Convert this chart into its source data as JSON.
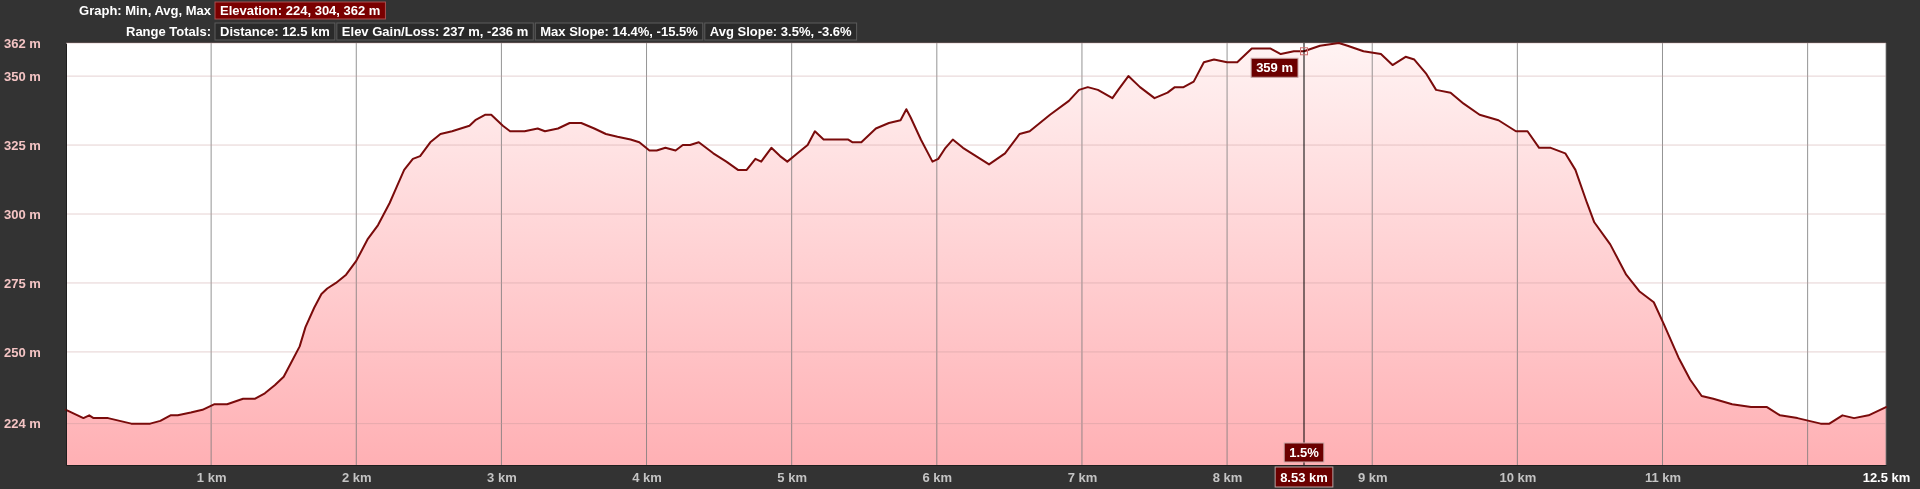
{
  "chart_data": {
    "type": "area",
    "annotations": [
      "Graph: Min, Avg, Max",
      "Elevation: 224, 304, 362 m",
      "Range Totals:",
      "Distance: 12.5 km",
      "Elev Gain/Loss: 237 m, -236 m",
      "Max Slope: 14.4%, -15.5%",
      "Avg Slope: 3.5%, -3.6%",
      {
        "text": "359 m",
        "x": 8.53,
        "y": 359
      },
      {
        "text": "1.5%",
        "x": 8.53
      }
    ],
    "x": [
      0,
      0.08,
      0.12,
      0.16,
      0.19,
      0.29,
      0.37,
      0.45,
      0.51,
      0.58,
      0.65,
      0.72,
      0.77,
      0.86,
      0.94,
      1.02,
      1.11,
      1.22,
      1.3,
      1.37,
      1.44,
      1.5,
      1.55,
      1.61,
      1.65,
      1.71,
      1.76,
      1.8,
      1.86,
      1.93,
      2.0,
      2.08,
      2.15,
      2.19,
      2.23,
      2.28,
      2.33,
      2.39,
      2.44,
      2.51,
      2.58,
      2.66,
      2.72,
      2.78,
      2.82,
      2.89,
      2.93,
      2.97,
      3.01,
      3.06,
      3.11,
      3.16,
      3.25,
      3.3,
      3.39,
      3.47,
      3.55,
      3.64,
      3.72,
      3.8,
      3.89,
      3.95,
      4.02,
      4.07,
      4.13,
      4.2,
      4.25,
      4.3,
      4.36,
      4.46,
      4.55,
      4.63,
      4.69,
      4.75,
      4.79,
      4.86,
      4.92,
      4.97,
      5.04,
      5.11,
      5.16,
      5.22,
      5.32,
      5.39,
      5.42,
      5.48,
      5.58,
      5.67,
      5.75,
      5.79,
      5.82,
      5.89,
      5.97,
      6.01,
      6.06,
      6.11,
      6.18,
      6.24,
      6.3,
      6.36,
      6.47,
      6.57,
      6.64,
      6.78,
      6.91,
      6.98,
      7.04,
      7.11,
      7.21,
      7.25,
      7.32,
      7.4,
      7.5,
      7.59,
      7.64,
      7.7,
      7.77,
      7.84,
      7.91,
      8.0,
      8.07,
      8.17,
      8.3,
      8.37,
      8.46,
      8.53,
      8.64,
      8.77,
      8.83,
      8.94,
      9.06,
      9.14,
      9.23,
      9.29,
      9.37,
      9.44,
      9.54,
      9.63,
      9.74,
      9.87,
      9.99,
      10.07,
      10.15,
      10.23,
      10.33,
      10.4,
      10.48,
      10.53,
      10.64,
      10.75,
      10.84,
      10.94,
      11.01,
      11.11,
      11.19,
      11.27,
      11.35,
      11.48,
      11.61,
      11.72,
      11.81,
      11.93,
      12.01,
      12.09,
      12.15,
      12.24,
      12.32,
      12.42,
      12.54
    ],
    "values": [
      229,
      227,
      226,
      227,
      226,
      226,
      225,
      224,
      224,
      224,
      225,
      227,
      227,
      228,
      229,
      231,
      231,
      233,
      233,
      235,
      238,
      241,
      246,
      252,
      259,
      266,
      271,
      273,
      275,
      278,
      283,
      291,
      296,
      300,
      304,
      310,
      316,
      320,
      321,
      326,
      329,
      330,
      331,
      332,
      334,
      336,
      336,
      334,
      332,
      330,
      330,
      330,
      331,
      330,
      331,
      333,
      333,
      331,
      329,
      328,
      327,
      326,
      323,
      323,
      324,
      323,
      325,
      325,
      326,
      322,
      319,
      316,
      316,
      320,
      319,
      324,
      321,
      319,
      322,
      325,
      330,
      327,
      327,
      327,
      326,
      326,
      331,
      333,
      334,
      338,
      335,
      327,
      319,
      320,
      324,
      327,
      324,
      322,
      320,
      318,
      322,
      329,
      330,
      336,
      341,
      345,
      346,
      345,
      342,
      345,
      350,
      346,
      342,
      344,
      346,
      346,
      348,
      355,
      356,
      355,
      355,
      360,
      360,
      358,
      359,
      359,
      361,
      362,
      361,
      359,
      358,
      354,
      357,
      356,
      351,
      345,
      344,
      340,
      336,
      334,
      330,
      330,
      324,
      324,
      322,
      316,
      304,
      297,
      289,
      278,
      272,
      268,
      260,
      248,
      240,
      234,
      233,
      231,
      230,
      230,
      227,
      226,
      225,
      224,
      224,
      227,
      226,
      227,
      230
    ],
    "color": "#7a0b0b",
    "xlim": [
      0,
      12.54
    ],
    "ylim": [
      209,
      362
    ],
    "xticks": [
      {
        "value": 1,
        "label": "1 km"
      },
      {
        "value": 2,
        "label": "2 km"
      },
      {
        "value": 3,
        "label": "3 km"
      },
      {
        "value": 4,
        "label": "4 km"
      },
      {
        "value": 5,
        "label": "5 km"
      },
      {
        "value": 6,
        "label": "6 km"
      },
      {
        "value": 7,
        "label": "7 km"
      },
      {
        "value": 8,
        "label": "8 km"
      },
      {
        "value": 9,
        "label": "9 km"
      },
      {
        "value": 10,
        "label": "10 km"
      },
      {
        "value": 11,
        "label": "11 km"
      },
      {
        "value": 12,
        "label": null
      },
      {
        "value": 12.54,
        "label": "12.5 km"
      }
    ],
    "yticks": [
      {
        "value": 224,
        "label": "224 m"
      },
      {
        "value": 250,
        "label": "250 m"
      },
      {
        "value": 275,
        "label": "275 m"
      },
      {
        "value": 300,
        "label": "300 m"
      },
      {
        "value": 325,
        "label": "325 m"
      },
      {
        "value": 350,
        "label": "350 m"
      },
      {
        "value": 362,
        "label": "362 m"
      }
    ],
    "grid": true,
    "ref_lines": [
      {
        "axis": "x",
        "value": 8.53,
        "label": "8.53 km",
        "color": "#000000"
      }
    ]
  }
}
